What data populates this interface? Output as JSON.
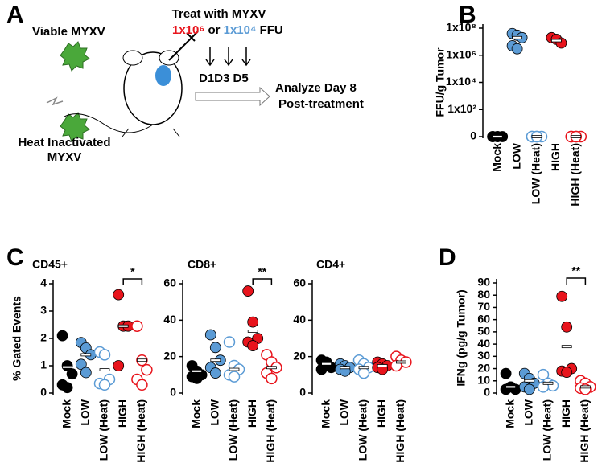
{
  "panel_labels": [
    "A",
    "B",
    "C",
    "D"
  ],
  "panel_a": {
    "viable": "Viable MYXV",
    "heat_inactivated": [
      "Heat Inactivated",
      "MYXV"
    ],
    "treat": "Treat with MYXV",
    "high_dose": "1x10⁶",
    "or": "or",
    "low_dose": "1x10⁴",
    "ffu": "FFU",
    "days": "D1D3 D5",
    "analyze": [
      "Analyze Day 8",
      "Post-treatment"
    ]
  },
  "chart_data": [
    {
      "type": "dot",
      "ylabel": "FFU/g Tumor",
      "yscale": "log",
      "categories": [
        "Mock",
        "LOW",
        "LOW (Heat)",
        "HIGH",
        "HIGH (Heat)"
      ],
      "colors": [
        "#000000",
        "#5b9bd5",
        "#5b9bd5",
        "#e8141c",
        "#e8141c"
      ],
      "filled": [
        true,
        true,
        false,
        true,
        false
      ],
      "values": [
        [
          0,
          0,
          0,
          0,
          0
        ],
        [
          40000000,
          30000000,
          20000000,
          5000000,
          3000000
        ],
        [
          0,
          0,
          0,
          0,
          0
        ],
        [
          20000000,
          15000000,
          8000000
        ],
        [
          0,
          0,
          0,
          0,
          0
        ]
      ],
      "means": [
        0,
        20000000,
        0,
        12000000,
        0
      ],
      "ylim": [
        1,
        100000000
      ],
      "yticks": [
        0,
        {
          "value": 100,
          "label": "1x10²"
        },
        {
          "value": 10000,
          "label": "1x10⁴"
        },
        {
          "value": 1000000,
          "label": "1x10⁶"
        },
        {
          "value": 100000000,
          "label": "1x10⁸"
        }
      ]
    },
    {
      "type": "dot",
      "title": "CD45+",
      "ylabel": "% Gated Events",
      "annotation": "*",
      "categories": [
        "Mock",
        "LOW",
        "LOW (Heat)",
        "HIGH",
        "HIGH (Heat)"
      ],
      "colors": [
        "#000000",
        "#5b9bd5",
        "#5b9bd5",
        "#e8141c",
        "#e8141c"
      ],
      "filled": [
        true,
        true,
        false,
        true,
        false
      ],
      "values": [
        [
          2.1,
          1.0,
          0.7,
          0.3,
          0.2
        ],
        [
          1.85,
          1.65,
          1.4,
          1.05,
          0.75
        ],
        [
          1.5,
          1.4,
          0.5,
          0.35,
          0.3
        ],
        [
          3.6,
          2.45,
          2.45,
          1.0
        ],
        [
          2.45,
          1.2,
          0.85,
          0.5,
          0.3
        ]
      ],
      "means": [
        0.95,
        1.4,
        0.85,
        2.45,
        1.2
      ],
      "ylim": [
        0,
        4
      ],
      "yticks": [
        0,
        1,
        2,
        3,
        4
      ]
    },
    {
      "type": "dot",
      "title": "CD8+",
      "annotation": "**",
      "categories": [
        "Mock",
        "LOW",
        "LOW (Heat)",
        "HIGH",
        "HIGH (Heat)"
      ],
      "colors": [
        "#000000",
        "#5b9bd5",
        "#5b9bd5",
        "#e8141c",
        "#e8141c"
      ],
      "filled": [
        true,
        true,
        false,
        true,
        false
      ],
      "values": [
        [
          15,
          12,
          10,
          9,
          8
        ],
        [
          32,
          25,
          18,
          14,
          11
        ],
        [
          28,
          15,
          13,
          10,
          9
        ],
        [
          56,
          39,
          30,
          28,
          26
        ],
        [
          21,
          17,
          14,
          11,
          8
        ]
      ],
      "means": [
        12,
        18,
        13,
        34,
        14
      ],
      "ylim": [
        0,
        60
      ],
      "yticks": [
        0,
        20,
        40,
        60
      ]
    },
    {
      "type": "dot",
      "title": "CD4+",
      "categories": [
        "Mock",
        "LOW",
        "LOW (Heat)",
        "HIGH",
        "HIGH (Heat)"
      ],
      "colors": [
        "#000000",
        "#5b9bd5",
        "#5b9bd5",
        "#e8141c",
        "#e8141c"
      ],
      "filled": [
        true,
        true,
        false,
        true,
        false
      ],
      "values": [
        [
          18,
          17,
          14,
          13
        ],
        [
          16,
          15,
          14,
          13,
          12
        ],
        [
          18,
          16,
          14,
          13,
          11
        ],
        [
          17,
          16,
          15,
          14,
          13
        ],
        [
          20,
          18,
          17,
          15
        ]
      ],
      "means": [
        16,
        14,
        14,
        15,
        17
      ],
      "ylim": [
        0,
        60
      ],
      "yticks": [
        0,
        20,
        40,
        60
      ]
    },
    {
      "type": "dot",
      "ylabel": "IFNg (pg/g Tumor)",
      "annotation": "**",
      "categories": [
        "Mock",
        "LOW",
        "LOW (Heat)",
        "HIGH",
        "HIGH (Heat)"
      ],
      "colors": [
        "#000000",
        "#5b9bd5",
        "#5b9bd5",
        "#e8141c",
        "#e8141c"
      ],
      "filled": [
        true,
        true,
        false,
        true,
        false
      ],
      "values": [
        [
          16,
          5,
          3,
          3
        ],
        [
          16,
          12,
          8,
          5,
          3
        ],
        [
          15,
          8,
          6,
          5
        ],
        [
          79,
          54,
          20,
          18,
          17
        ],
        [
          10,
          8,
          5,
          4,
          3
        ]
      ],
      "means": [
        5,
        10,
        8,
        38,
        5
      ],
      "ylim": [
        0,
        90
      ],
      "yticks": [
        0,
        10,
        20,
        30,
        40,
        50,
        60,
        70,
        80,
        90
      ]
    }
  ]
}
